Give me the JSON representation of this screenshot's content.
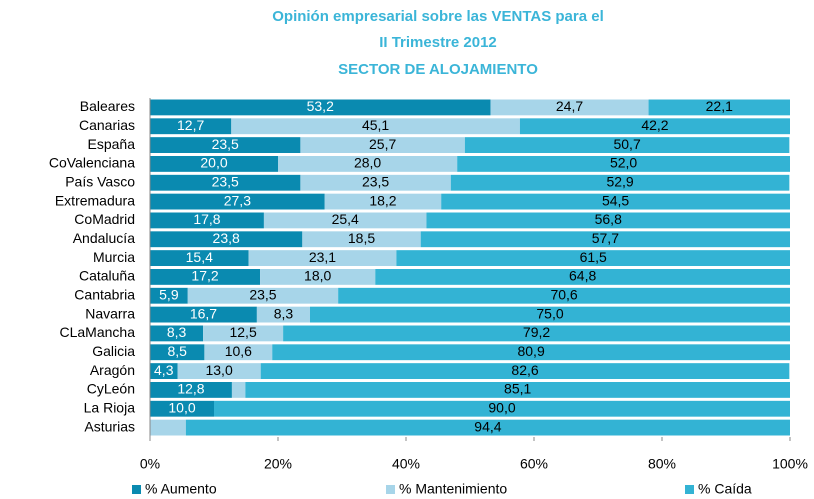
{
  "chart_data": {
    "type": "stacked_barh",
    "title": [
      "Opinión empresarial sobre las VENTAS para el",
      "II Trimestre 2012",
      "SECTOR DE ALOJAMIENTO"
    ],
    "categories": [
      "Baleares",
      "Canarias",
      "España",
      "CoValenciana",
      "País Vasco",
      "Extremadura",
      "CoMadrid",
      "Andalucía",
      "Murcia",
      "Cataluña",
      "Cantabria",
      "Navarra",
      "CLaMancha",
      "Galicia",
      "Aragón",
      "CyLeón",
      "La Rioja",
      "Asturias"
    ],
    "series": [
      {
        "name": "% Aumento",
        "color": "#0a8ab0",
        "label_color": "#ffffff",
        "values": [
          53.2,
          12.7,
          23.5,
          20.0,
          23.5,
          27.3,
          17.8,
          23.8,
          15.4,
          17.2,
          5.9,
          16.7,
          8.3,
          8.5,
          4.3,
          12.8,
          10.0,
          0
        ],
        "value_labels": [
          "53,2",
          "12,7",
          "23,5",
          "20,0",
          "23,5",
          "27,3",
          "17,8",
          "23,8",
          "15,4",
          "17,2",
          "5,9",
          "16,7",
          "8,3",
          "8,5",
          "4,3",
          "12,8",
          "10,0",
          "0"
        ]
      },
      {
        "name": "% Mantenimiento",
        "color": "#a7d5e9",
        "label_color": "#000000",
        "values": [
          24.7,
          45.1,
          25.7,
          28.0,
          23.5,
          18.2,
          25.4,
          18.5,
          23.1,
          18.0,
          23.5,
          8.3,
          12.5,
          10.6,
          13.0,
          2.1,
          0,
          5.6
        ],
        "value_labels": [
          "24,7",
          "45,1",
          "25,7",
          "28,0",
          "23,5",
          "18,2",
          "25,4",
          "18,5",
          "23,1",
          "18,0",
          "23,5",
          "8,3",
          "12,5",
          "10,6",
          "13,0",
          null,
          null,
          null
        ]
      },
      {
        "name": "% Caída",
        "color": "#33b3d4",
        "label_color": "#000000",
        "values": [
          22.1,
          42.2,
          50.7,
          52.0,
          52.9,
          54.5,
          56.8,
          57.7,
          61.5,
          64.8,
          70.6,
          75.0,
          79.2,
          80.9,
          82.6,
          85.1,
          90.0,
          94.4
        ],
        "value_labels": [
          "22,1",
          "42,2",
          "50,7",
          "52,0",
          "52,9",
          "54,5",
          "56,8",
          "57,7",
          "61,5",
          "64,8",
          "70,6",
          "75,0",
          "79,2",
          "80,9",
          "82,6",
          "85,1",
          "90,0",
          "94,4"
        ]
      }
    ],
    "xlim": [
      0,
      100
    ],
    "xticks": [
      {
        "value": 0,
        "label": "0%"
      },
      {
        "value": 20,
        "label": "20%"
      },
      {
        "value": 40,
        "label": "40%"
      },
      {
        "value": 60,
        "label": "60%"
      },
      {
        "value": 80,
        "label": "80%"
      },
      {
        "value": 100,
        "label": "100%"
      }
    ],
    "legend": "bottom"
  }
}
